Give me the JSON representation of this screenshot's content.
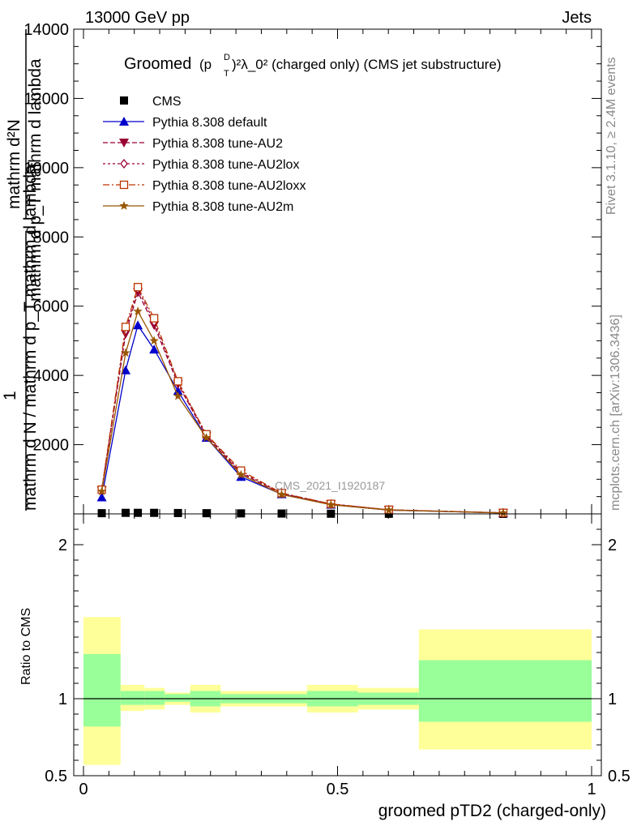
{
  "header": {
    "left": "13000 GeV pp",
    "right": "Jets"
  },
  "title": {
    "prefix": "Groomed",
    "formula": "(p",
    "sub": "T",
    "sup": "D",
    "rest": ")²λ_0²  (charged only) (CMS jet substructure)"
  },
  "side_labels": {
    "rivet": "Rivet 3.1.10, ≥ 2.4M events",
    "mcplots": "mcplots.cern.ch [arXiv:1306.3436]"
  },
  "ylabel_main": {
    "line1": "mathrm d²N",
    "line2": "mathrm d p_T mathrm d lambda",
    "line3": "1",
    "line4": "mathrm d N / mathrm d p_T mathrm d lambda"
  },
  "analysis_label": "CMS_2021_I1920187",
  "colors": {
    "cms": "#000000",
    "default": "#0000cc",
    "au2": "#990033",
    "au2lox": "#990033",
    "au2loxx": "#bb3300",
    "au2m": "#995500",
    "band_green": "#99ff99",
    "band_yellow": "#ffff99"
  },
  "chart_data": [
    {
      "type": "line",
      "ylim": [
        0,
        14000
      ],
      "xlim": [
        0,
        1
      ],
      "yticks": [
        {
          "v": 2000,
          "label": "2000"
        },
        {
          "v": 4000,
          "label": "4000"
        },
        {
          "v": 6000,
          "label": "6000"
        },
        {
          "v": 8000,
          "label": "8000"
        },
        {
          "v": 10000,
          "label": "10000"
        },
        {
          "v": 12000,
          "label": "12000"
        },
        {
          "v": 14000,
          "label": "14000"
        }
      ],
      "x": [
        0.036,
        0.083,
        0.107,
        0.139,
        0.186,
        0.242,
        0.31,
        0.39,
        0.487,
        0.601,
        0.826
      ],
      "series": [
        {
          "name": "CMS",
          "key": "cms",
          "marker": "square",
          "values": [
            20,
            30,
            30,
            30,
            25,
            20,
            15,
            10,
            5,
            3,
            1
          ]
        },
        {
          "name": "Pythia 8.308 default",
          "key": "default",
          "marker": "triangle",
          "dash": "",
          "values": [
            480,
            4150,
            5450,
            4750,
            3550,
            2200,
            1070,
            570,
            270,
            110,
            25
          ]
        },
        {
          "name": "Pythia 8.308 tune-AU2",
          "key": "au2",
          "marker": "triangle-down",
          "dash": "6,3",
          "values": [
            680,
            5200,
            6400,
            5450,
            3750,
            2250,
            1170,
            590,
            280,
            115,
            30
          ]
        },
        {
          "name": "Pythia 8.308 tune-AU2lox",
          "key": "au2lox",
          "marker": "diamond",
          "dash": "3,3",
          "values": [
            700,
            5300,
            6500,
            5550,
            3800,
            2280,
            1200,
            600,
            285,
            118,
            30
          ]
        },
        {
          "name": "Pythia 8.308 tune-AU2loxx",
          "key": "au2loxx",
          "marker": "square-open",
          "dash": "8,3,2,3",
          "values": [
            700,
            5400,
            6550,
            5650,
            3830,
            2300,
            1250,
            600,
            290,
            120,
            30
          ]
        },
        {
          "name": "Pythia 8.308 tune-AU2m",
          "key": "au2m",
          "marker": "star",
          "dash": "",
          "values": [
            650,
            4650,
            5850,
            5000,
            3400,
            2200,
            1130,
            560,
            265,
            110,
            25
          ]
        }
      ]
    },
    {
      "type": "area",
      "ylabel": "Ratio to CMS",
      "ylim": [
        0.5,
        2.2
      ],
      "yticks": [
        {
          "v": 0.5,
          "label": "0.5"
        },
        {
          "v": 1,
          "label": "1"
        },
        {
          "v": 2,
          "label": "2"
        }
      ],
      "xticks": [
        {
          "v": 0,
          "label": "0"
        },
        {
          "v": 0.5,
          "label": "0.5"
        },
        {
          "v": 1,
          "label": "1"
        }
      ],
      "xlabel": "groomed pTD2 (charged-only)",
      "bins": [
        {
          "x0": 0.0,
          "x1": 0.073,
          "g": [
            0.82,
            1.29
          ],
          "y": [
            0.57,
            1.53
          ]
        },
        {
          "x0": 0.073,
          "x1": 0.12,
          "g": [
            0.96,
            1.05
          ],
          "y": [
            0.92,
            1.09
          ]
        },
        {
          "x0": 0.12,
          "x1": 0.16,
          "g": [
            0.96,
            1.05
          ],
          "y": [
            0.93,
            1.07
          ]
        },
        {
          "x0": 0.16,
          "x1": 0.21,
          "g": [
            0.98,
            1.03
          ],
          "y": [
            0.96,
            1.04
          ]
        },
        {
          "x0": 0.21,
          "x1": 0.27,
          "g": [
            0.95,
            1.05
          ],
          "y": [
            0.91,
            1.09
          ]
        },
        {
          "x0": 0.27,
          "x1": 0.44,
          "g": [
            0.97,
            1.03
          ],
          "y": [
            0.95,
            1.05
          ]
        },
        {
          "x0": 0.44,
          "x1": 0.54,
          "g": [
            0.95,
            1.05
          ],
          "y": [
            0.91,
            1.09
          ]
        },
        {
          "x0": 0.54,
          "x1": 0.66,
          "g": [
            0.96,
            1.04
          ],
          "y": [
            0.93,
            1.07
          ]
        },
        {
          "x0": 0.66,
          "x1": 1.0,
          "g": [
            0.85,
            1.25
          ],
          "y": [
            0.67,
            1.45
          ]
        }
      ]
    }
  ]
}
